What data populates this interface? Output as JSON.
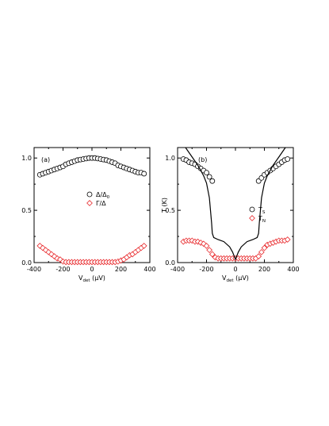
{
  "chart_data": [
    {
      "type": "scatter",
      "panel_label": "(a)",
      "xlabel": "V",
      "xlabel_sub": "det",
      "xlabel_unit": " (μV)",
      "ylabel": "",
      "xlim": [
        -400,
        400
      ],
      "ylim": [
        0,
        1.1
      ],
      "x_ticks": [
        "-400",
        "-200",
        "0",
        "200",
        "400"
      ],
      "y_ticks": [
        "0.0",
        "0.5",
        "1.0"
      ],
      "legend_position": "center-right",
      "series": [
        {
          "name": "Δ/Δ",
          "name_sub": "0",
          "marker": "circle",
          "color": "#000000",
          "x": [
            -360,
            -340,
            -320,
            -300,
            -280,
            -260,
            -240,
            -220,
            -200,
            -180,
            -160,
            -140,
            -120,
            -100,
            -80,
            -60,
            -40,
            -20,
            0,
            20,
            40,
            60,
            80,
            100,
            120,
            140,
            160,
            180,
            200,
            220,
            240,
            260,
            280,
            300,
            320,
            340,
            360
          ],
          "y": [
            0.84,
            0.85,
            0.86,
            0.87,
            0.88,
            0.89,
            0.9,
            0.91,
            0.92,
            0.94,
            0.95,
            0.96,
            0.97,
            0.98,
            0.985,
            0.99,
            0.995,
            1.0,
            1.0,
            1.0,
            0.995,
            0.99,
            0.985,
            0.98,
            0.97,
            0.96,
            0.95,
            0.93,
            0.92,
            0.91,
            0.9,
            0.89,
            0.88,
            0.87,
            0.86,
            0.86,
            0.85
          ]
        },
        {
          "name": "Γ/Δ",
          "marker": "diamond",
          "color": "#e8282b",
          "x": [
            -360,
            -340,
            -320,
            -300,
            -280,
            -260,
            -240,
            -220,
            -200,
            -180,
            -160,
            -140,
            -120,
            -100,
            -80,
            -60,
            -40,
            -20,
            0,
            20,
            40,
            60,
            80,
            100,
            120,
            140,
            160,
            180,
            200,
            220,
            240,
            260,
            280,
            300,
            320,
            340,
            360
          ],
          "y": [
            0.16,
            0.14,
            0.12,
            0.1,
            0.08,
            0.06,
            0.04,
            0.03,
            0.01,
            0.005,
            0.005,
            0.005,
            0.005,
            0.005,
            0.005,
            0.005,
            0.005,
            0.005,
            0.005,
            0.005,
            0.005,
            0.005,
            0.005,
            0.005,
            0.005,
            0.005,
            0.005,
            0.01,
            0.02,
            0.03,
            0.05,
            0.07,
            0.08,
            0.1,
            0.12,
            0.14,
            0.16
          ]
        }
      ]
    },
    {
      "type": "scatter",
      "panel_label": "(b)",
      "xlabel": "V",
      "xlabel_sub": "det",
      "xlabel_unit": " (μV)",
      "ylabel": "T (K)",
      "xlim": [
        -400,
        400
      ],
      "ylim": [
        0,
        1.1
      ],
      "x_ticks": [
        "-400",
        "-200",
        "0",
        "200",
        "400"
      ],
      "y_ticks": [
        "0.0",
        "0.5",
        "1.0"
      ],
      "legend_position": "center-right",
      "series": [
        {
          "name": "T",
          "name_sub": "S",
          "marker": "circle",
          "color": "#000000",
          "x": [
            -360,
            -340,
            -320,
            -300,
            -280,
            -260,
            -240,
            -220,
            -200,
            -180,
            -160,
            160,
            180,
            200,
            220,
            240,
            260,
            280,
            300,
            320,
            340,
            360
          ],
          "y": [
            0.99,
            0.98,
            0.96,
            0.95,
            0.94,
            0.92,
            0.9,
            0.88,
            0.86,
            0.82,
            0.78,
            0.78,
            0.81,
            0.84,
            0.86,
            0.88,
            0.9,
            0.92,
            0.94,
            0.96,
            0.98,
            0.99
          ]
        },
        {
          "name": "T",
          "name_sub": "N",
          "marker": "diamond",
          "color": "#e8282b",
          "x": [
            -360,
            -340,
            -320,
            -300,
            -280,
            -260,
            -240,
            -220,
            -200,
            -180,
            -160,
            -140,
            -120,
            -100,
            -80,
            -60,
            -40,
            -20,
            0,
            20,
            40,
            60,
            80,
            100,
            120,
            140,
            160,
            180,
            200,
            220,
            240,
            260,
            280,
            300,
            320,
            340,
            360
          ],
          "y": [
            0.2,
            0.21,
            0.21,
            0.21,
            0.2,
            0.2,
            0.19,
            0.18,
            0.16,
            0.12,
            0.08,
            0.05,
            0.04,
            0.04,
            0.04,
            0.04,
            0.04,
            0.04,
            0.04,
            0.04,
            0.04,
            0.04,
            0.04,
            0.04,
            0.04,
            0.04,
            0.06,
            0.1,
            0.14,
            0.17,
            0.18,
            0.19,
            0.2,
            0.21,
            0.21,
            0.21,
            0.22
          ]
        },
        {
          "name": "",
          "marker": "line",
          "color": "#000000",
          "x": [
            -345,
            -300,
            -260,
            -220,
            -200,
            -180,
            -165,
            -160,
            -150,
            -120,
            -80,
            -40,
            -20,
            0,
            20,
            40,
            80,
            120,
            150,
            160,
            165,
            180,
            200,
            220,
            260,
            300,
            345
          ],
          "y": [
            1.1,
            1.01,
            0.93,
            0.83,
            0.76,
            0.62,
            0.38,
            0.28,
            0.24,
            0.22,
            0.2,
            0.15,
            0.1,
            0.03,
            0.1,
            0.15,
            0.2,
            0.22,
            0.24,
            0.28,
            0.38,
            0.62,
            0.76,
            0.83,
            0.93,
            1.01,
            1.1
          ]
        }
      ]
    }
  ]
}
